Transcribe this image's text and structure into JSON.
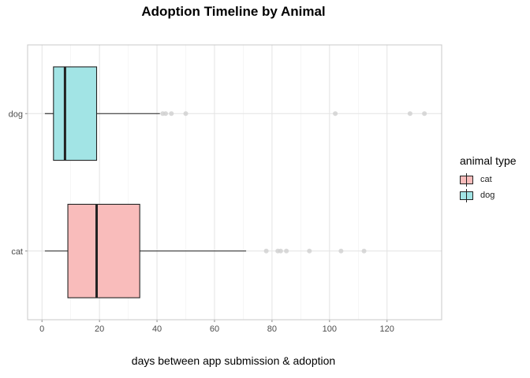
{
  "chart_data": {
    "type": "boxplot",
    "orientation": "horizontal",
    "title": "Adoption Timeline by Animal",
    "xlabel": "days between app submission & adoption",
    "ylabel": "",
    "xlim": [
      -5,
      139
    ],
    "x_ticks": [
      0,
      20,
      40,
      60,
      80,
      100,
      120
    ],
    "categories": [
      "dog",
      "cat"
    ],
    "grid": true,
    "legend": {
      "title": "animal type",
      "position": "right",
      "entries": [
        "cat",
        "dog"
      ]
    },
    "series": [
      {
        "name": "dog",
        "color": "#a2e4e5",
        "whisker_low": 1,
        "q1": 4,
        "median": 8,
        "q3": 19,
        "whisker_high": 41,
        "outliers": [
          42,
          43,
          45,
          50,
          102,
          128,
          133
        ]
      },
      {
        "name": "cat",
        "color": "#f9bcbb",
        "whisker_low": 1,
        "q1": 9,
        "median": 19,
        "q3": 34,
        "whisker_high": 71,
        "outliers": [
          78,
          82,
          83,
          85,
          93,
          104,
          112
        ]
      }
    ]
  }
}
